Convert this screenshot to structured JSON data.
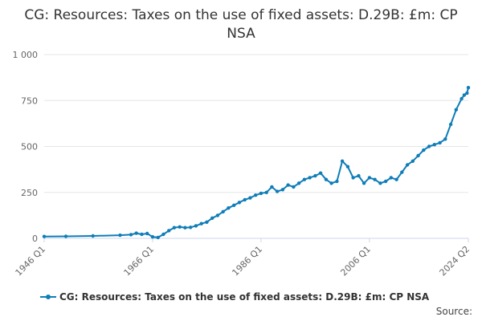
{
  "title": "CG: Resources: Taxes on the use of fixed assets: D.29B: £m: CP NSA",
  "source_label": "Source:",
  "colors": {
    "series": "#0e7db8",
    "grid": "#e6e6e6",
    "axis": "#ccd6eb"
  },
  "chart_data": {
    "type": "line",
    "title": "CG: Resources: Taxes on the use of fixed assets: D.29B: £m: CP NSA",
    "xlabel": "",
    "ylabel": "",
    "ylim": [
      0,
      1000
    ],
    "yticks": [
      0,
      250,
      500,
      750,
      1000
    ],
    "ytick_labels": [
      "0",
      "250",
      "500",
      "750",
      "1 000"
    ],
    "xlim": [
      "1946 Q1",
      "2024 Q2"
    ],
    "xticks": [
      "1946 Q1",
      "1966 Q1",
      "1986 Q1",
      "2006 Q1",
      "2024 Q2"
    ],
    "grid": true,
    "legend_position": "bottom",
    "series": [
      {
        "name": "CG: Resources: Taxes on the use of fixed assets: D.29B: £m: CP NSA",
        "points": [
          [
            "1946 Q1",
            10
          ],
          [
            "1950 Q1",
            11
          ],
          [
            "1955 Q1",
            13
          ],
          [
            "1960 Q1",
            17
          ],
          [
            "1962 Q1",
            20
          ],
          [
            "1963 Q1",
            28
          ],
          [
            "1964 Q1",
            22
          ],
          [
            "1965 Q1",
            26
          ],
          [
            "1966 Q1",
            8
          ],
          [
            "1967 Q1",
            5
          ],
          [
            "1968 Q1",
            22
          ],
          [
            "1969 Q1",
            42
          ],
          [
            "1970 Q1",
            58
          ],
          [
            "1971 Q1",
            62
          ],
          [
            "1972 Q1",
            58
          ],
          [
            "1973 Q1",
            60
          ],
          [
            "1974 Q1",
            68
          ],
          [
            "1975 Q1",
            80
          ],
          [
            "1976 Q1",
            88
          ],
          [
            "1977 Q1",
            110
          ],
          [
            "1978 Q1",
            125
          ],
          [
            "1979 Q1",
            145
          ],
          [
            "1980 Q1",
            165
          ],
          [
            "1981 Q1",
            180
          ],
          [
            "1982 Q1",
            195
          ],
          [
            "1983 Q1",
            210
          ],
          [
            "1984 Q1",
            220
          ],
          [
            "1985 Q1",
            235
          ],
          [
            "1986 Q1",
            245
          ],
          [
            "1987 Q1",
            250
          ],
          [
            "1988 Q1",
            280
          ],
          [
            "1989 Q1",
            255
          ],
          [
            "1990 Q1",
            265
          ],
          [
            "1991 Q1",
            290
          ],
          [
            "1992 Q1",
            280
          ],
          [
            "1993 Q1",
            300
          ],
          [
            "1994 Q1",
            320
          ],
          [
            "1995 Q1",
            330
          ],
          [
            "1996 Q1",
            340
          ],
          [
            "1997 Q1",
            355
          ],
          [
            "1998 Q1",
            320
          ],
          [
            "1999 Q1",
            300
          ],
          [
            "2000 Q1",
            310
          ],
          [
            "2001 Q1",
            420
          ],
          [
            "2002 Q1",
            390
          ],
          [
            "2003 Q1",
            330
          ],
          [
            "2004 Q1",
            340
          ],
          [
            "2005 Q1",
            300
          ],
          [
            "2006 Q1",
            330
          ],
          [
            "2007 Q1",
            320
          ],
          [
            "2008 Q1",
            300
          ],
          [
            "2009 Q1",
            310
          ],
          [
            "2010 Q1",
            330
          ],
          [
            "2011 Q1",
            320
          ],
          [
            "2012 Q1",
            360
          ],
          [
            "2013 Q1",
            400
          ],
          [
            "2014 Q1",
            420
          ],
          [
            "2015 Q1",
            450
          ],
          [
            "2016 Q1",
            480
          ],
          [
            "2017 Q1",
            500
          ],
          [
            "2018 Q1",
            510
          ],
          [
            "2019 Q1",
            520
          ],
          [
            "2020 Q1",
            540
          ],
          [
            "2021 Q1",
            620
          ],
          [
            "2022 Q1",
            700
          ],
          [
            "2023 Q1",
            760
          ],
          [
            "2023 Q3",
            780
          ],
          [
            "2024 Q1",
            790
          ],
          [
            "2024 Q2",
            820
          ]
        ]
      }
    ]
  }
}
